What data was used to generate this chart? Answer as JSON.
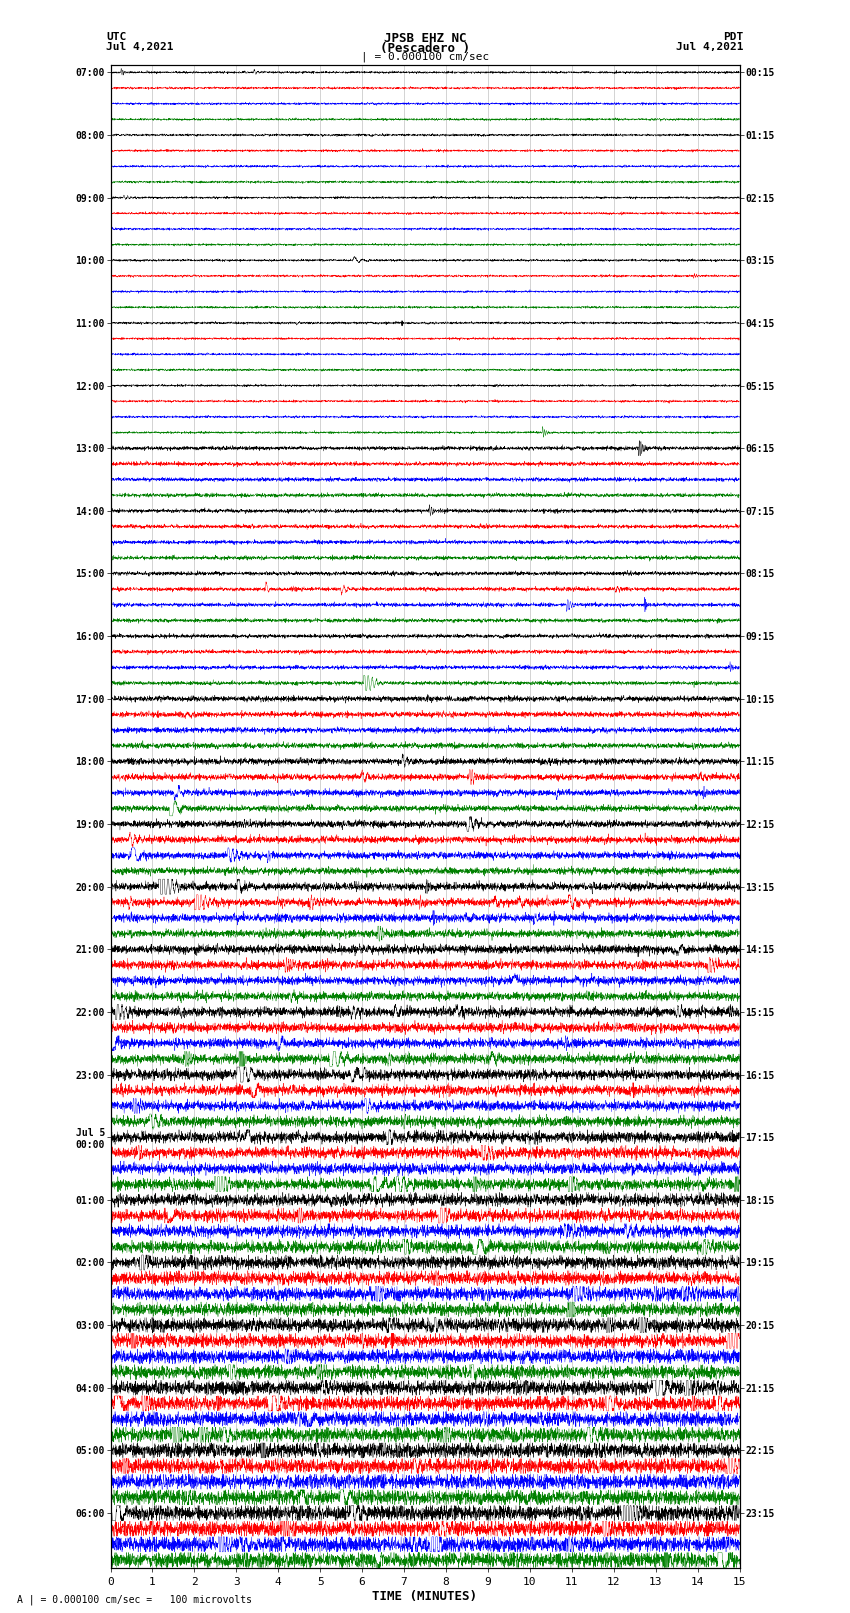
{
  "title_line1": "JPSB EHZ NC",
  "title_line2": "(Pescadero )",
  "scale_label": "| = 0.000100 cm/sec",
  "left_label": "UTC",
  "left_date": "Jul 4,2021",
  "right_label": "PDT",
  "right_date": "Jul 4,2021",
  "xlabel": "TIME (MINUTES)",
  "bottom_note": "A | = 0.000100 cm/sec =   100 microvolts",
  "utc_labels": [
    "07:00",
    "08:00",
    "09:00",
    "10:00",
    "11:00",
    "12:00",
    "13:00",
    "14:00",
    "15:00",
    "16:00",
    "17:00",
    "18:00",
    "19:00",
    "20:00",
    "21:00",
    "22:00",
    "23:00",
    "Jul 5\n00:00",
    "01:00",
    "02:00",
    "03:00",
    "04:00",
    "05:00",
    "06:00"
  ],
  "pdt_labels": [
    "00:15",
    "01:15",
    "02:15",
    "03:15",
    "04:15",
    "05:15",
    "06:15",
    "07:15",
    "08:15",
    "09:15",
    "10:15",
    "11:15",
    "12:15",
    "13:15",
    "14:15",
    "15:15",
    "16:15",
    "17:15",
    "18:15",
    "19:15",
    "20:15",
    "21:15",
    "22:15",
    "23:15"
  ],
  "n_rows": 24,
  "n_traces": 4,
  "trace_colors": [
    "black",
    "red",
    "blue",
    "green"
  ],
  "bg_color": "white",
  "xmin": 0,
  "xmax": 15,
  "xticks": [
    0,
    1,
    2,
    3,
    4,
    5,
    6,
    7,
    8,
    9,
    10,
    11,
    12,
    13,
    14,
    15
  ]
}
